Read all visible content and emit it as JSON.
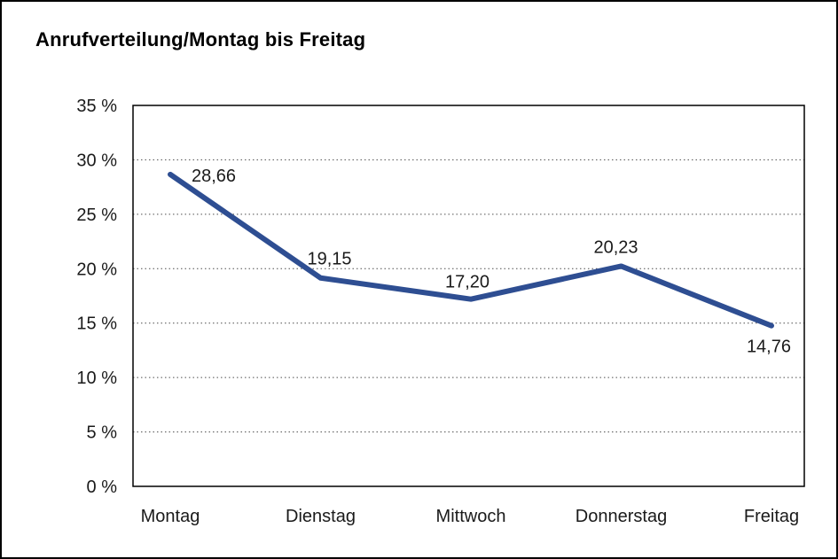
{
  "chart_data": {
    "type": "line",
    "title": "Anrufverteilung/Montag bis Freitag",
    "categories": [
      "Montag",
      "Dienstag",
      "Mittwoch",
      "Donnerstag",
      "Freitag"
    ],
    "values": [
      28.66,
      19.15,
      17.2,
      20.23,
      14.76
    ],
    "value_labels": [
      "28,66",
      "19,15",
      "17,20",
      "20,23",
      "14,76"
    ],
    "y_ticks": [
      "0 %",
      "5 %",
      "10 %",
      "15 %",
      "20 %",
      "25 %",
      "30 %",
      "35 %"
    ],
    "ylim": [
      0,
      35
    ],
    "y_step": 5,
    "xlabel": "",
    "ylabel": "",
    "legend": "none",
    "grid": "horizontal-dotted",
    "line_color": "#2e4e92",
    "grid_color": "#4d4d4d",
    "axis_color": "#000000",
    "text_color": "#1a1a1a"
  }
}
